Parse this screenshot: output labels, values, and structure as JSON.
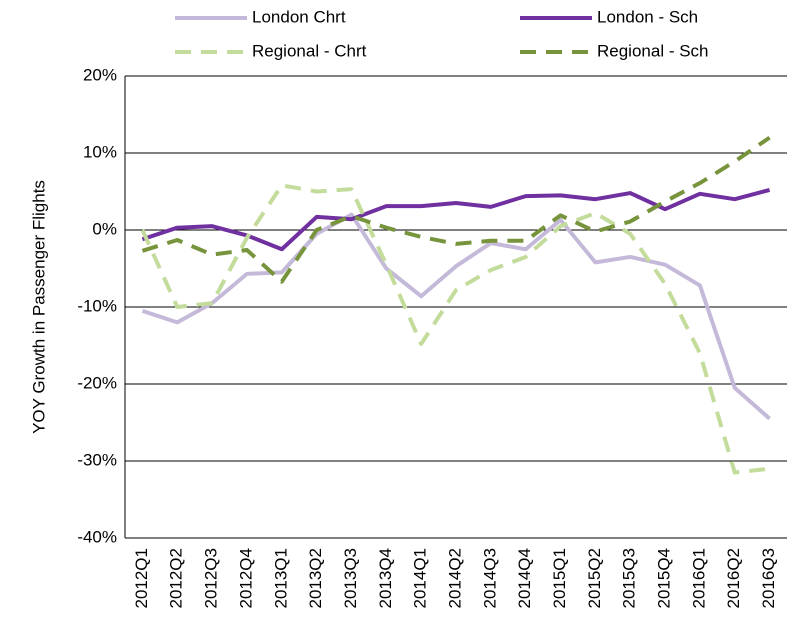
{
  "chart_data": {
    "type": "line",
    "y_label": "YOY Growth in Passenger Flights",
    "categories": [
      "2012Q1",
      "2012Q2",
      "2012Q3",
      "2012Q4",
      "2013Q1",
      "2013Q2",
      "2013Q3",
      "2013Q4",
      "2014Q1",
      "2014Q2",
      "2014Q3",
      "2014Q4",
      "2015Q1",
      "2015Q2",
      "2015Q3",
      "2015Q4",
      "2016Q1",
      "2016Q2",
      "2016Q3"
    ],
    "series": [
      {
        "name": "London Chrt",
        "color": "#c5b9d9",
        "dashed": false,
        "values": [
          -10.5,
          -12,
          -9.5,
          -5.7,
          -5.5,
          -0.5,
          2,
          -5,
          -8.6,
          -4.7,
          -1.7,
          -2.5,
          1.3,
          -4.2,
          -3.5,
          -4.5,
          -7.2,
          -20.5,
          -24.5
        ]
      },
      {
        "name": "London - Sch",
        "color": "#7030a0",
        "dashed": false,
        "values": [
          -1.2,
          0.3,
          0.5,
          -0.7,
          -2.5,
          1.7,
          1.4,
          3.1,
          3.1,
          3.5,
          3.0,
          4.4,
          4.5,
          4.0,
          4.8,
          2.7,
          4.7,
          4.0,
          5.2
        ]
      },
      {
        "name": "Regional - Chrt",
        "color": "#c3dc9b",
        "dashed": true,
        "values": [
          0,
          -10,
          -9.5,
          -1,
          5.8,
          5,
          5.3,
          -4.5,
          -14.8,
          -7.8,
          -5.2,
          -3.5,
          0.5,
          2.2,
          -0.5,
          -7,
          -16,
          -31.5,
          -31
        ]
      },
      {
        "name": "Regional - Sch",
        "color": "#77933c",
        "dashed": true,
        "values": [
          -2.7,
          -1.3,
          -3.2,
          -2.6,
          -6.7,
          0,
          1.8,
          0.3,
          -0.9,
          -1.8,
          -1.4,
          -1.4,
          1.9,
          -0.2,
          1.1,
          3.7,
          6.1,
          8.9,
          12
        ]
      }
    ],
    "ylim": [
      -40,
      20
    ],
    "yticks": [
      {
        "value": -40,
        "label": "-40%"
      },
      {
        "value": -30,
        "label": "-30%"
      },
      {
        "value": -20,
        "label": "-20%"
      },
      {
        "value": -10,
        "label": "-10%"
      },
      {
        "value": 0,
        "label": "0%"
      },
      {
        "value": 10,
        "label": "10%"
      },
      {
        "value": 20,
        "label": "20%"
      }
    ],
    "grid": true,
    "legend": "top"
  }
}
